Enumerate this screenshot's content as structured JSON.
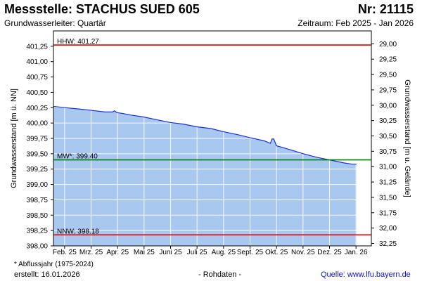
{
  "header": {
    "title": "Messstelle: STACHUS SUED 605",
    "nr": "Nr: 21115",
    "subtitle": "Grundwasserleiter: Quartär",
    "zeitraum": "Zeitraum: Feb 2025 - Jan 2026"
  },
  "footer": {
    "footnote": "* Abflussjahr (1975-2024)",
    "erstellt": "erstellt:  16.01.2026",
    "rohdaten": "- Rohdaten -",
    "quelle_label": "Quelle: ",
    "quelle_url": "www.lfu.bayern.de"
  },
  "chart_data": {
    "type": "area",
    "ylabel_left": "Grundwasserstand [m ü. NN]",
    "ylabel_right": "Grundwasserstand [m u. Gelände]",
    "ylim_left": [
      398.0,
      401.5
    ],
    "yticks_left": [
      "401,25",
      "401,00",
      "400,75",
      "400,50",
      "400,25",
      "400,00",
      "399,75",
      "399,50",
      "399,25",
      "399,00",
      "398,75",
      "398,50",
      "398,25",
      "398,00"
    ],
    "yticks_left_values": [
      401.25,
      401.0,
      400.75,
      400.5,
      400.25,
      400.0,
      399.75,
      399.5,
      399.25,
      399.0,
      398.75,
      398.5,
      398.25,
      398.0
    ],
    "yticks_right": [
      "29,00",
      "29,25",
      "29,50",
      "29,75",
      "30,00",
      "30,25",
      "30,50",
      "30,75",
      "31,00",
      "31,25",
      "31,50",
      "31,75",
      "32,00",
      "32,25"
    ],
    "yticks_right_values": [
      401.29,
      401.04,
      400.79,
      400.54,
      400.29,
      400.04,
      399.79,
      399.54,
      399.29,
      399.04,
      398.79,
      398.54,
      398.29,
      398.04
    ],
    "xticks": [
      "Feb. 25",
      "Mrz. 25",
      "Apr. 25",
      "Mai 25",
      "Juni 25",
      "Juli 25",
      "Aug. 25",
      "Sept. 25",
      "Okt. 25",
      "Nov. 25",
      "Dez. 25",
      "Jan. 26"
    ],
    "grid": true,
    "colors": {
      "fill": "#a8c8f0",
      "line": "#1a2ed8",
      "hhw": "#e00000",
      "mw": "#008000",
      "nnw": "#e00000",
      "gridline": "#ffffff"
    },
    "reference_lines": [
      {
        "label": "HHW: 401.27",
        "value": 401.27,
        "color": "#e00000"
      },
      {
        "label": "MW*: 399.40",
        "value": 399.4,
        "color": "#008000"
      },
      {
        "label": "NNW: 398.18",
        "value": 398.18,
        "color": "#e00000"
      }
    ],
    "series": [
      {
        "dates": [
          "2025-02-01",
          "2025-02-15",
          "2025-03-01",
          "2025-03-15",
          "2025-04-01",
          "2025-04-10",
          "2025-04-12",
          "2025-04-15",
          "2025-04-20",
          "2025-05-01",
          "2025-05-15",
          "2025-06-01",
          "2025-06-15",
          "2025-07-01",
          "2025-07-15",
          "2025-08-01",
          "2025-08-15",
          "2025-09-01",
          "2025-09-15",
          "2025-10-01",
          "2025-10-08",
          "2025-10-10",
          "2025-10-12",
          "2025-10-15",
          "2025-10-20",
          "2025-11-01",
          "2025-11-15",
          "2025-12-01",
          "2025-12-15",
          "2026-01-01",
          "2026-01-10",
          "2026-01-15"
        ],
        "values": [
          400.27,
          400.25,
          400.23,
          400.21,
          400.18,
          400.18,
          400.2,
          400.17,
          400.16,
          400.13,
          400.1,
          400.05,
          400.01,
          399.98,
          399.94,
          399.91,
          399.86,
          399.81,
          399.76,
          399.71,
          399.67,
          399.74,
          399.74,
          399.63,
          399.61,
          399.56,
          399.5,
          399.44,
          399.4,
          399.35,
          399.33,
          399.33
        ]
      }
    ]
  }
}
